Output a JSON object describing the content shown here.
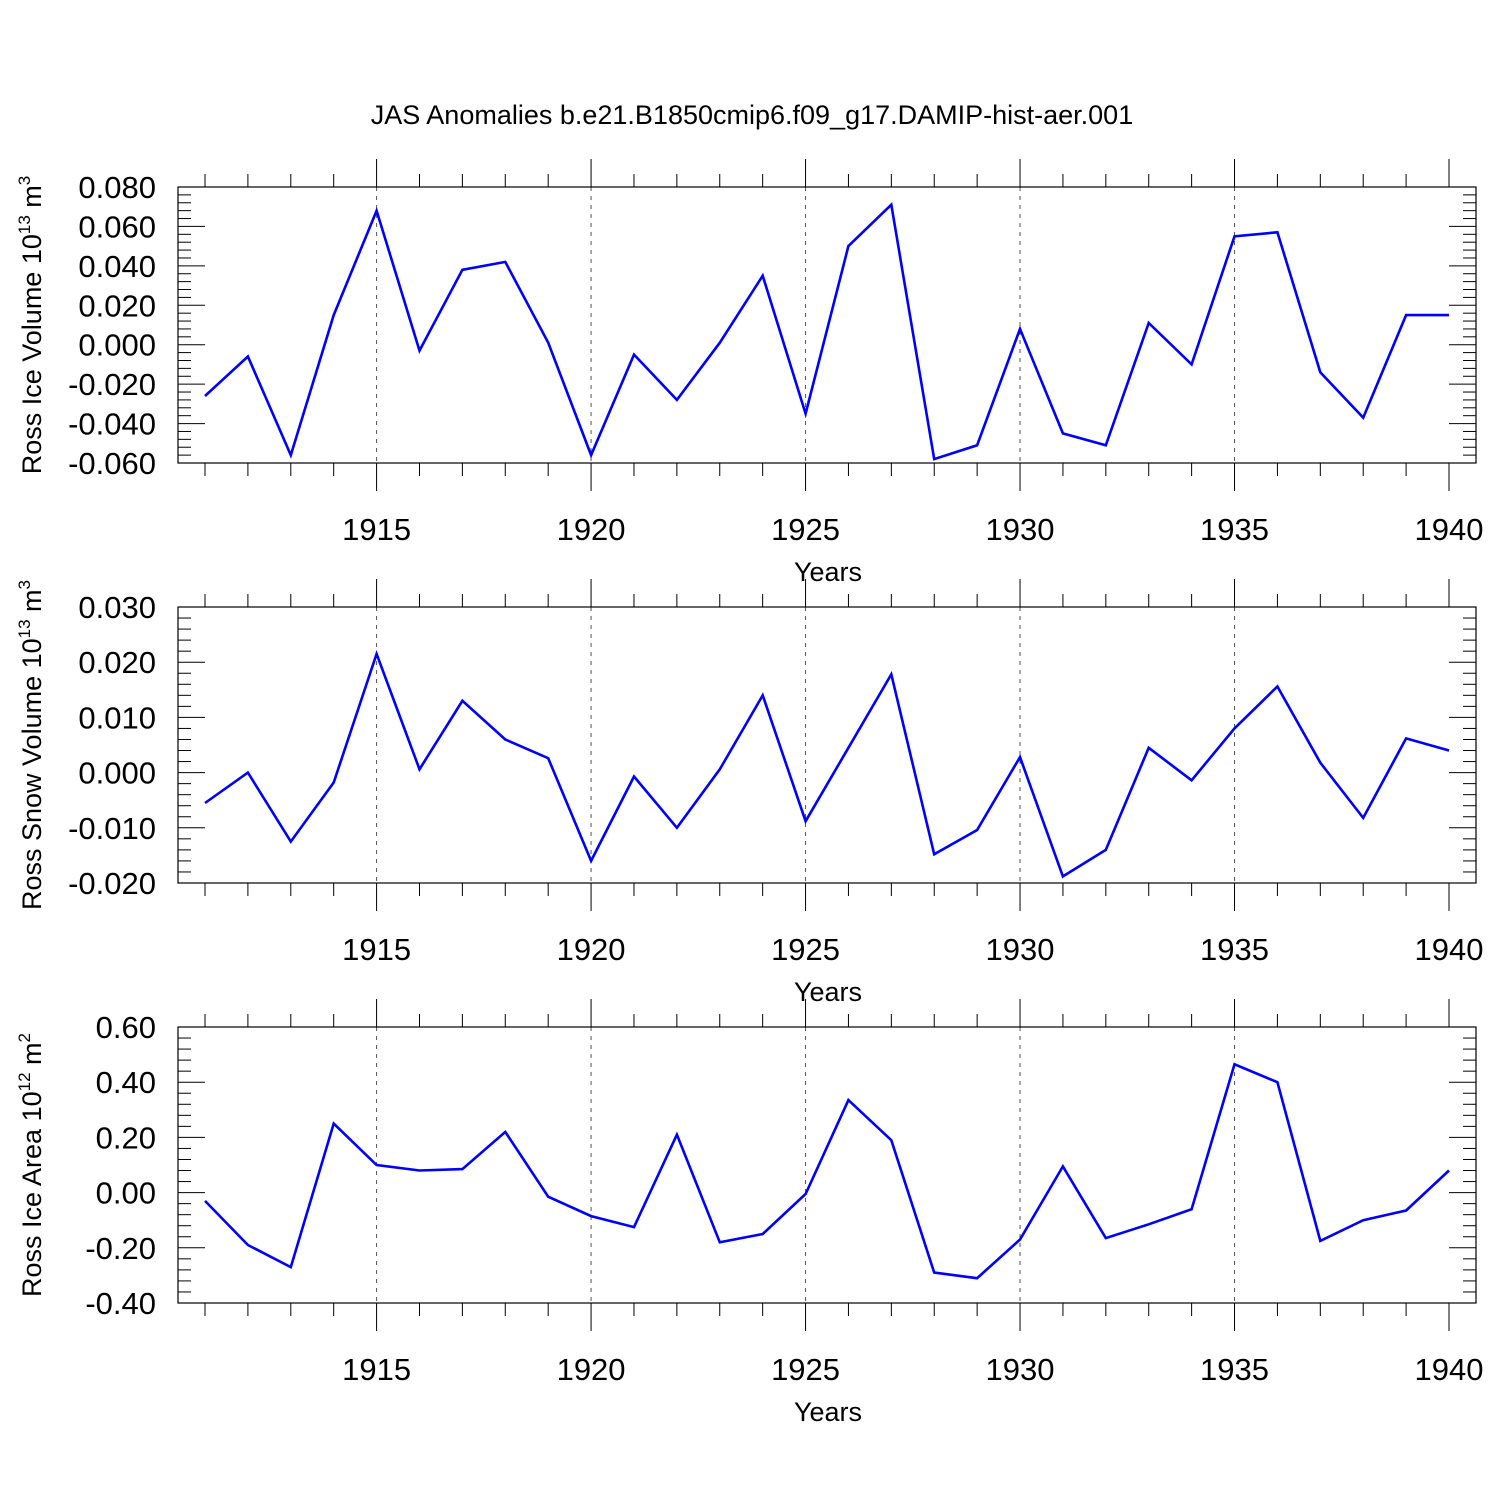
{
  "title": "JAS Anomalies b.e21.B1850cmip6.f09_g17.DAMIP-hist-aer.001",
  "line_color": "#0000ff",
  "chart_data": [
    {
      "type": "line",
      "ylabel": {
        "base": "Ross Ice Volume 10",
        "exponent": "13",
        "unit": " m",
        "unit_exponent": "3"
      },
      "xlabel": "Years",
      "xlim": [
        1911,
        1940
      ],
      "ylim": [
        -0.06,
        0.08
      ],
      "xticks": [
        1915,
        1920,
        1925,
        1930,
        1935,
        1940
      ],
      "yticks": [
        -0.06,
        -0.04,
        -0.02,
        0.0,
        0.02,
        0.04,
        0.06,
        0.08
      ],
      "ytick_labels": [
        "-0.060",
        "-0.040",
        "-0.020",
        "0.000",
        "0.020",
        "0.040",
        "0.060",
        "0.080"
      ],
      "series": [
        {
          "x": [
            1911,
            1912,
            1913,
            1914,
            1915,
            1916,
            1917,
            1918,
            1919,
            1920,
            1921,
            1922,
            1923,
            1924,
            1925,
            1926,
            1927,
            1928,
            1929,
            1930,
            1931,
            1932,
            1933,
            1934,
            1935,
            1936,
            1937,
            1938,
            1939,
            1940
          ],
          "y": [
            -0.026,
            -0.006,
            -0.056,
            0.015,
            0.068,
            -0.003,
            0.038,
            0.042,
            0.001,
            -0.056,
            -0.005,
            -0.028,
            0.001,
            0.035,
            -0.035,
            0.05,
            0.071,
            -0.058,
            -0.051,
            0.008,
            -0.045,
            -0.051,
            0.011,
            -0.01,
            0.055,
            0.057,
            -0.014,
            -0.037,
            0.015,
            0.015
          ]
        }
      ]
    },
    {
      "type": "line",
      "ylabel": {
        "base": "Ross Snow Volume 10",
        "exponent": "13",
        "unit": " m",
        "unit_exponent": "3"
      },
      "xlabel": "Years",
      "xlim": [
        1911,
        1940
      ],
      "ylim": [
        -0.02,
        0.03
      ],
      "xticks": [
        1915,
        1920,
        1925,
        1930,
        1935,
        1940
      ],
      "yticks": [
        -0.02,
        -0.01,
        0.0,
        0.01,
        0.02,
        0.03
      ],
      "ytick_labels": [
        "-0.020",
        "-0.010",
        "0.000",
        "0.010",
        "0.020",
        "0.030"
      ],
      "series": [
        {
          "x": [
            1911,
            1912,
            1913,
            1914,
            1915,
            1916,
            1917,
            1918,
            1919,
            1920,
            1921,
            1922,
            1923,
            1924,
            1925,
            1926,
            1927,
            1928,
            1929,
            1930,
            1931,
            1932,
            1933,
            1934,
            1935,
            1936,
            1937,
            1938,
            1939,
            1940
          ],
          "y": [
            -0.0055,
            0.0,
            -0.0125,
            -0.0018,
            0.0215,
            0.0006,
            0.013,
            0.006,
            0.0026,
            -0.016,
            -0.0007,
            -0.01,
            0.0006,
            0.014,
            -0.0088,
            0.0045,
            0.0178,
            -0.0148,
            -0.0104,
            0.0028,
            -0.0188,
            -0.014,
            0.0045,
            -0.0014,
            0.008,
            0.0156,
            0.0018,
            -0.0082,
            0.0062,
            0.004
          ]
        }
      ]
    },
    {
      "type": "line",
      "ylabel": {
        "base": "Ross Ice Area 10",
        "exponent": "12",
        "unit": " m",
        "unit_exponent": "2"
      },
      "xlabel": "Years",
      "xlim": [
        1911,
        1940
      ],
      "ylim": [
        -0.4,
        0.6
      ],
      "xticks": [
        1915,
        1920,
        1925,
        1930,
        1935,
        1940
      ],
      "yticks": [
        -0.4,
        -0.2,
        0.0,
        0.2,
        0.4,
        0.6
      ],
      "ytick_labels": [
        "-0.40",
        "-0.20",
        "0.00",
        "0.20",
        "0.40",
        "0.60"
      ],
      "series": [
        {
          "x": [
            1911,
            1912,
            1913,
            1914,
            1915,
            1916,
            1917,
            1918,
            1919,
            1920,
            1921,
            1922,
            1923,
            1924,
            1925,
            1926,
            1927,
            1928,
            1929,
            1930,
            1931,
            1932,
            1933,
            1934,
            1935,
            1936,
            1937,
            1938,
            1939,
            1940
          ],
          "y": [
            -0.03,
            -0.19,
            -0.27,
            0.25,
            0.1,
            0.08,
            0.085,
            0.22,
            -0.015,
            -0.085,
            -0.125,
            0.21,
            -0.18,
            -0.15,
            -0.005,
            0.335,
            0.19,
            -0.29,
            -0.31,
            -0.17,
            0.095,
            -0.165,
            -0.115,
            -0.06,
            0.465,
            0.4,
            -0.175,
            -0.1,
            -0.065,
            0.08
          ]
        }
      ]
    }
  ]
}
